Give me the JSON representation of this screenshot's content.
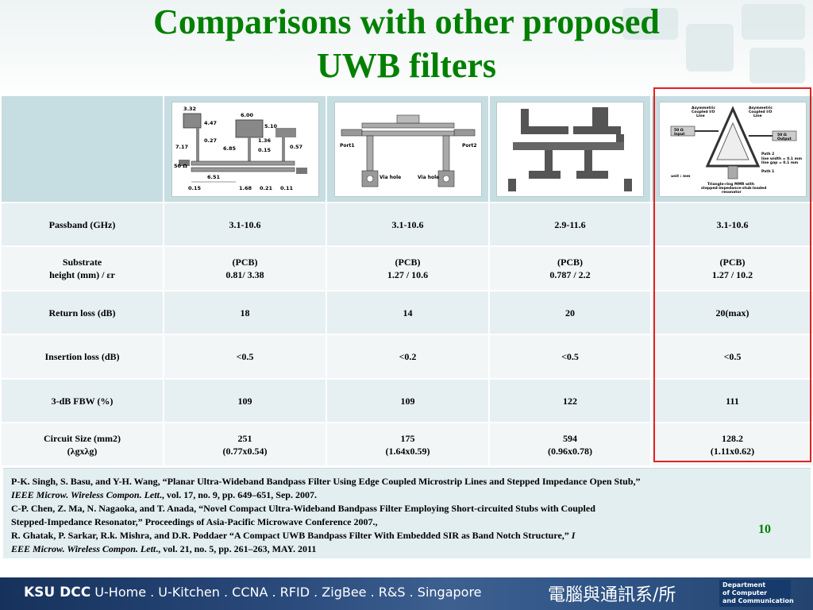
{
  "slide": {
    "title_line1": "Comparisons with other proposed",
    "title_line2": "UWB filters",
    "page_number": "10",
    "accent_color": "#008000",
    "highlight_color": "#e52020"
  },
  "table": {
    "rows": [
      {
        "label": "Passband (GHz)",
        "values": [
          "3.1-10.6",
          "3.1-10.6",
          "2.9-11.6",
          "3.1-10.6"
        ]
      },
      {
        "label": "Substrate",
        "label2": "height (mm) / εr",
        "values": [
          "(PCB)",
          "(PCB)",
          "(PCB)",
          "(PCB)"
        ],
        "values2": [
          "0.81/ 3.38",
          "1.27 / 10.6",
          "0.787 / 2.2",
          "1.27 / 10.2"
        ]
      },
      {
        "label": "Return loss (dB)",
        "values": [
          "18",
          "14",
          "20",
          "20(max)"
        ]
      },
      {
        "label": "Insertion loss (dB)",
        "values": [
          "<0.5",
          "<0.2",
          "<0.5",
          "<0.5"
        ]
      },
      {
        "label": "3-dB FBW (%)",
        "values": [
          "109",
          "109",
          "122",
          "111"
        ]
      },
      {
        "label": "Circuit Size (mm2)",
        "label2": "(λgxλg)",
        "values": [
          "251",
          "175",
          "594",
          "128.2"
        ],
        "values2": [
          "(0.77x0.54)",
          "(1.64x0.59)",
          "(0.96x0.78)",
          "(1.11x0.62)"
        ]
      }
    ],
    "figures": [
      {
        "icon": "stepped-impedance-filter-diagram",
        "labels": [
          "3.32",
          "6.00",
          "4.47",
          "5.10",
          "0.27",
          "1.36",
          "7.17",
          "6.85",
          "0.15",
          "0.57",
          "50 Ω",
          "6.51",
          "0.15",
          "1.68",
          "0.21",
          "0.11"
        ]
      },
      {
        "icon": "short-circuited-stub-filter-diagram",
        "labels": [
          "Port1",
          "Port2",
          "Via hole",
          "Via hole"
        ]
      },
      {
        "icon": "embedded-sir-filter-diagram",
        "labels": []
      },
      {
        "icon": "triangle-ring-mmr-diagram",
        "labels": [
          "Asymmetric",
          "Coupled I/O",
          "Line",
          "Asymmetric",
          "Coupled I/O",
          "Line",
          "50 Ω",
          "Input",
          "50 Ω",
          "Output",
          "Path 2",
          "line width = 0.1 mm",
          "line gap = 0.1 mm",
          "Path 1",
          "unit : mm",
          "Triangle-ring MMR with",
          "stepped-impedance-stub-loaded",
          "resonator"
        ]
      }
    ]
  },
  "references": {
    "line1": "P-K. Singh, S. Basu, and Y-H. Wang, “Planar Ultra-Wideband Bandpass Filter Using Edge Coupled Microstrip Lines and Stepped Impedance Open Stub,”",
    "line2_italic": "IEEE Microw. Wireless Compon. Lett",
    "line2_rest": "., vol. 17, no. 9, pp. 649–651, Sep. 2007.",
    "line3": "C-P. Chen, Z. Ma, N. Nagaoka, and T. Anada, “Novel Compact Ultra-Wideband Bandpass Filter Employing Short-circuited Stubs with Coupled",
    "line4": "Stepped-Impedance Resonator,” Proceedings of Asia-Pacific Microwave Conference 2007.,",
    "line5": "R. Ghatak, P. Sarkar, R.k. Mishra, and D.R. Poddaer “A Compact UWB Bandpass Filter With Embedded SIR as Band Notch Structure,”",
    "line5_italic": "I",
    "line6_italic": "EEE Microw. Wireless Compon. Lett",
    "line6_rest": "., vol. 21, no. 5, pp. 261–263, MAY. 2011"
  },
  "footer": {
    "brand": "KSU DCC",
    "tagline": "U-Home . U-Kitchen . CCNA . RFID . ZigBee . R&S . Singapore",
    "dept_cn": "電腦與通訊系/所",
    "dept_en_1": "Department",
    "dept_en_2": "of Computer",
    "dept_en_3": "and Communication"
  }
}
